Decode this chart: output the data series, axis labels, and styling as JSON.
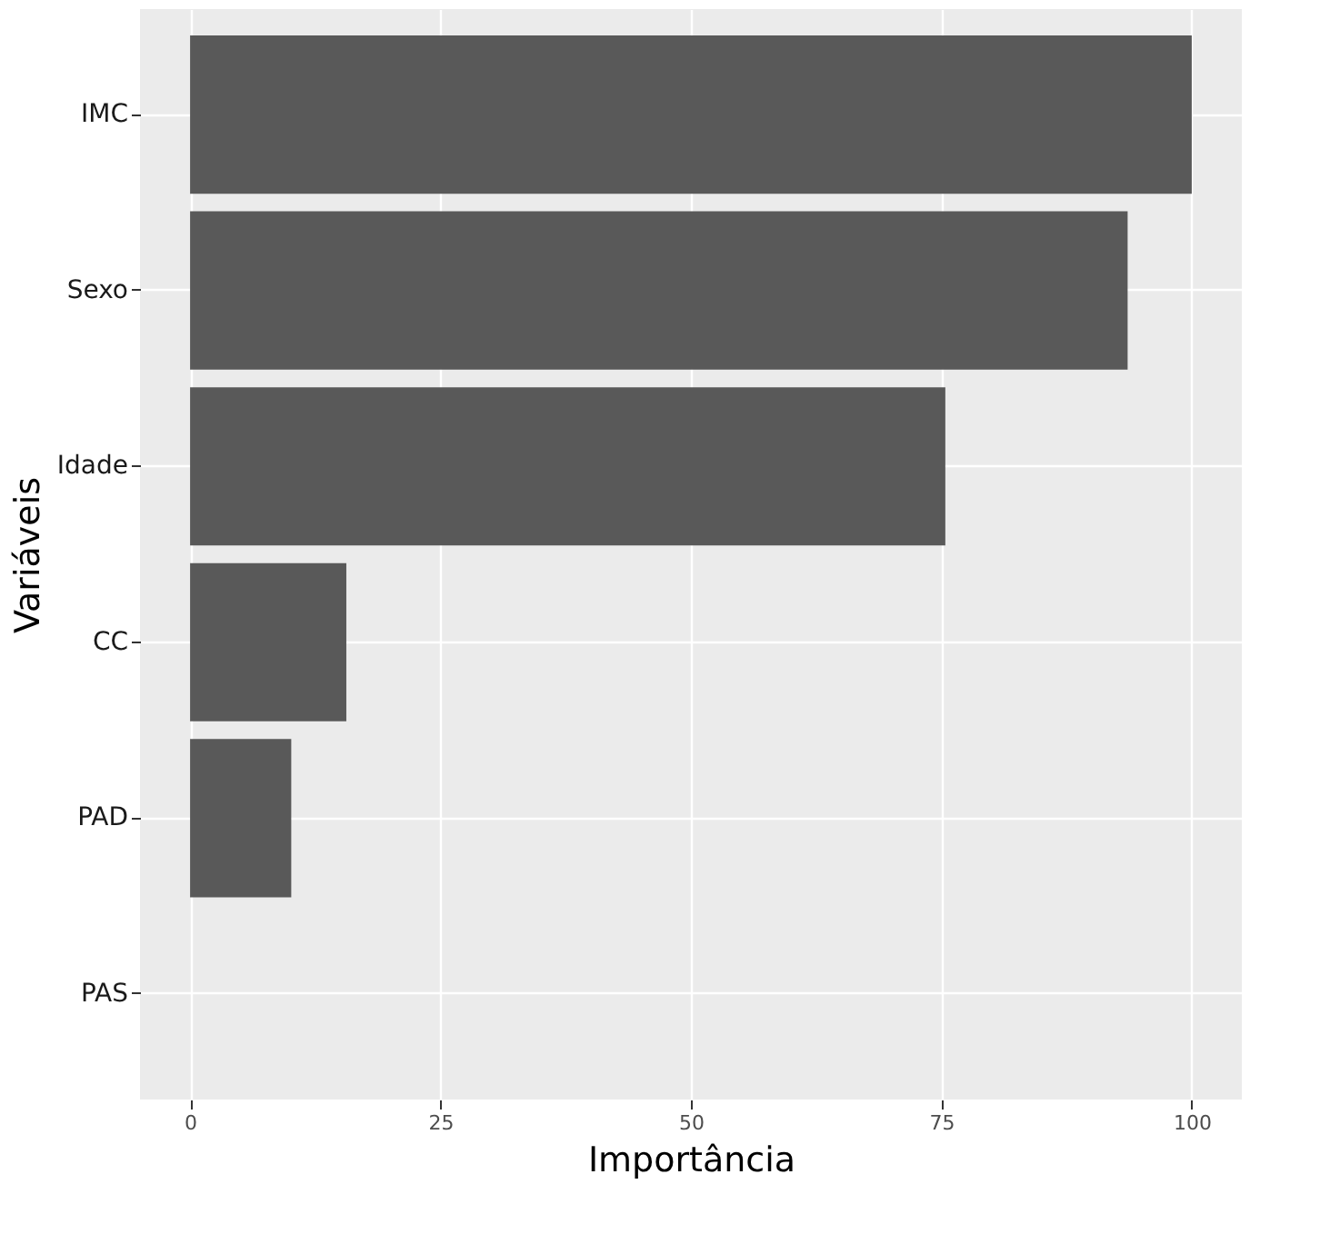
{
  "chart_data": {
    "type": "bar",
    "orientation": "horizontal",
    "xlabel": "Importância",
    "ylabel": "Variáveis",
    "categories": [
      "IMC",
      "Sexo",
      "Idade",
      "CC",
      "PAD",
      "PAS"
    ],
    "values": [
      100,
      93.6,
      75.4,
      15.6,
      10.1,
      0
    ],
    "color": "#595959",
    "xlim": [
      -5,
      105
    ],
    "xticks": [
      0,
      25,
      50,
      75,
      100
    ],
    "grid": true
  }
}
